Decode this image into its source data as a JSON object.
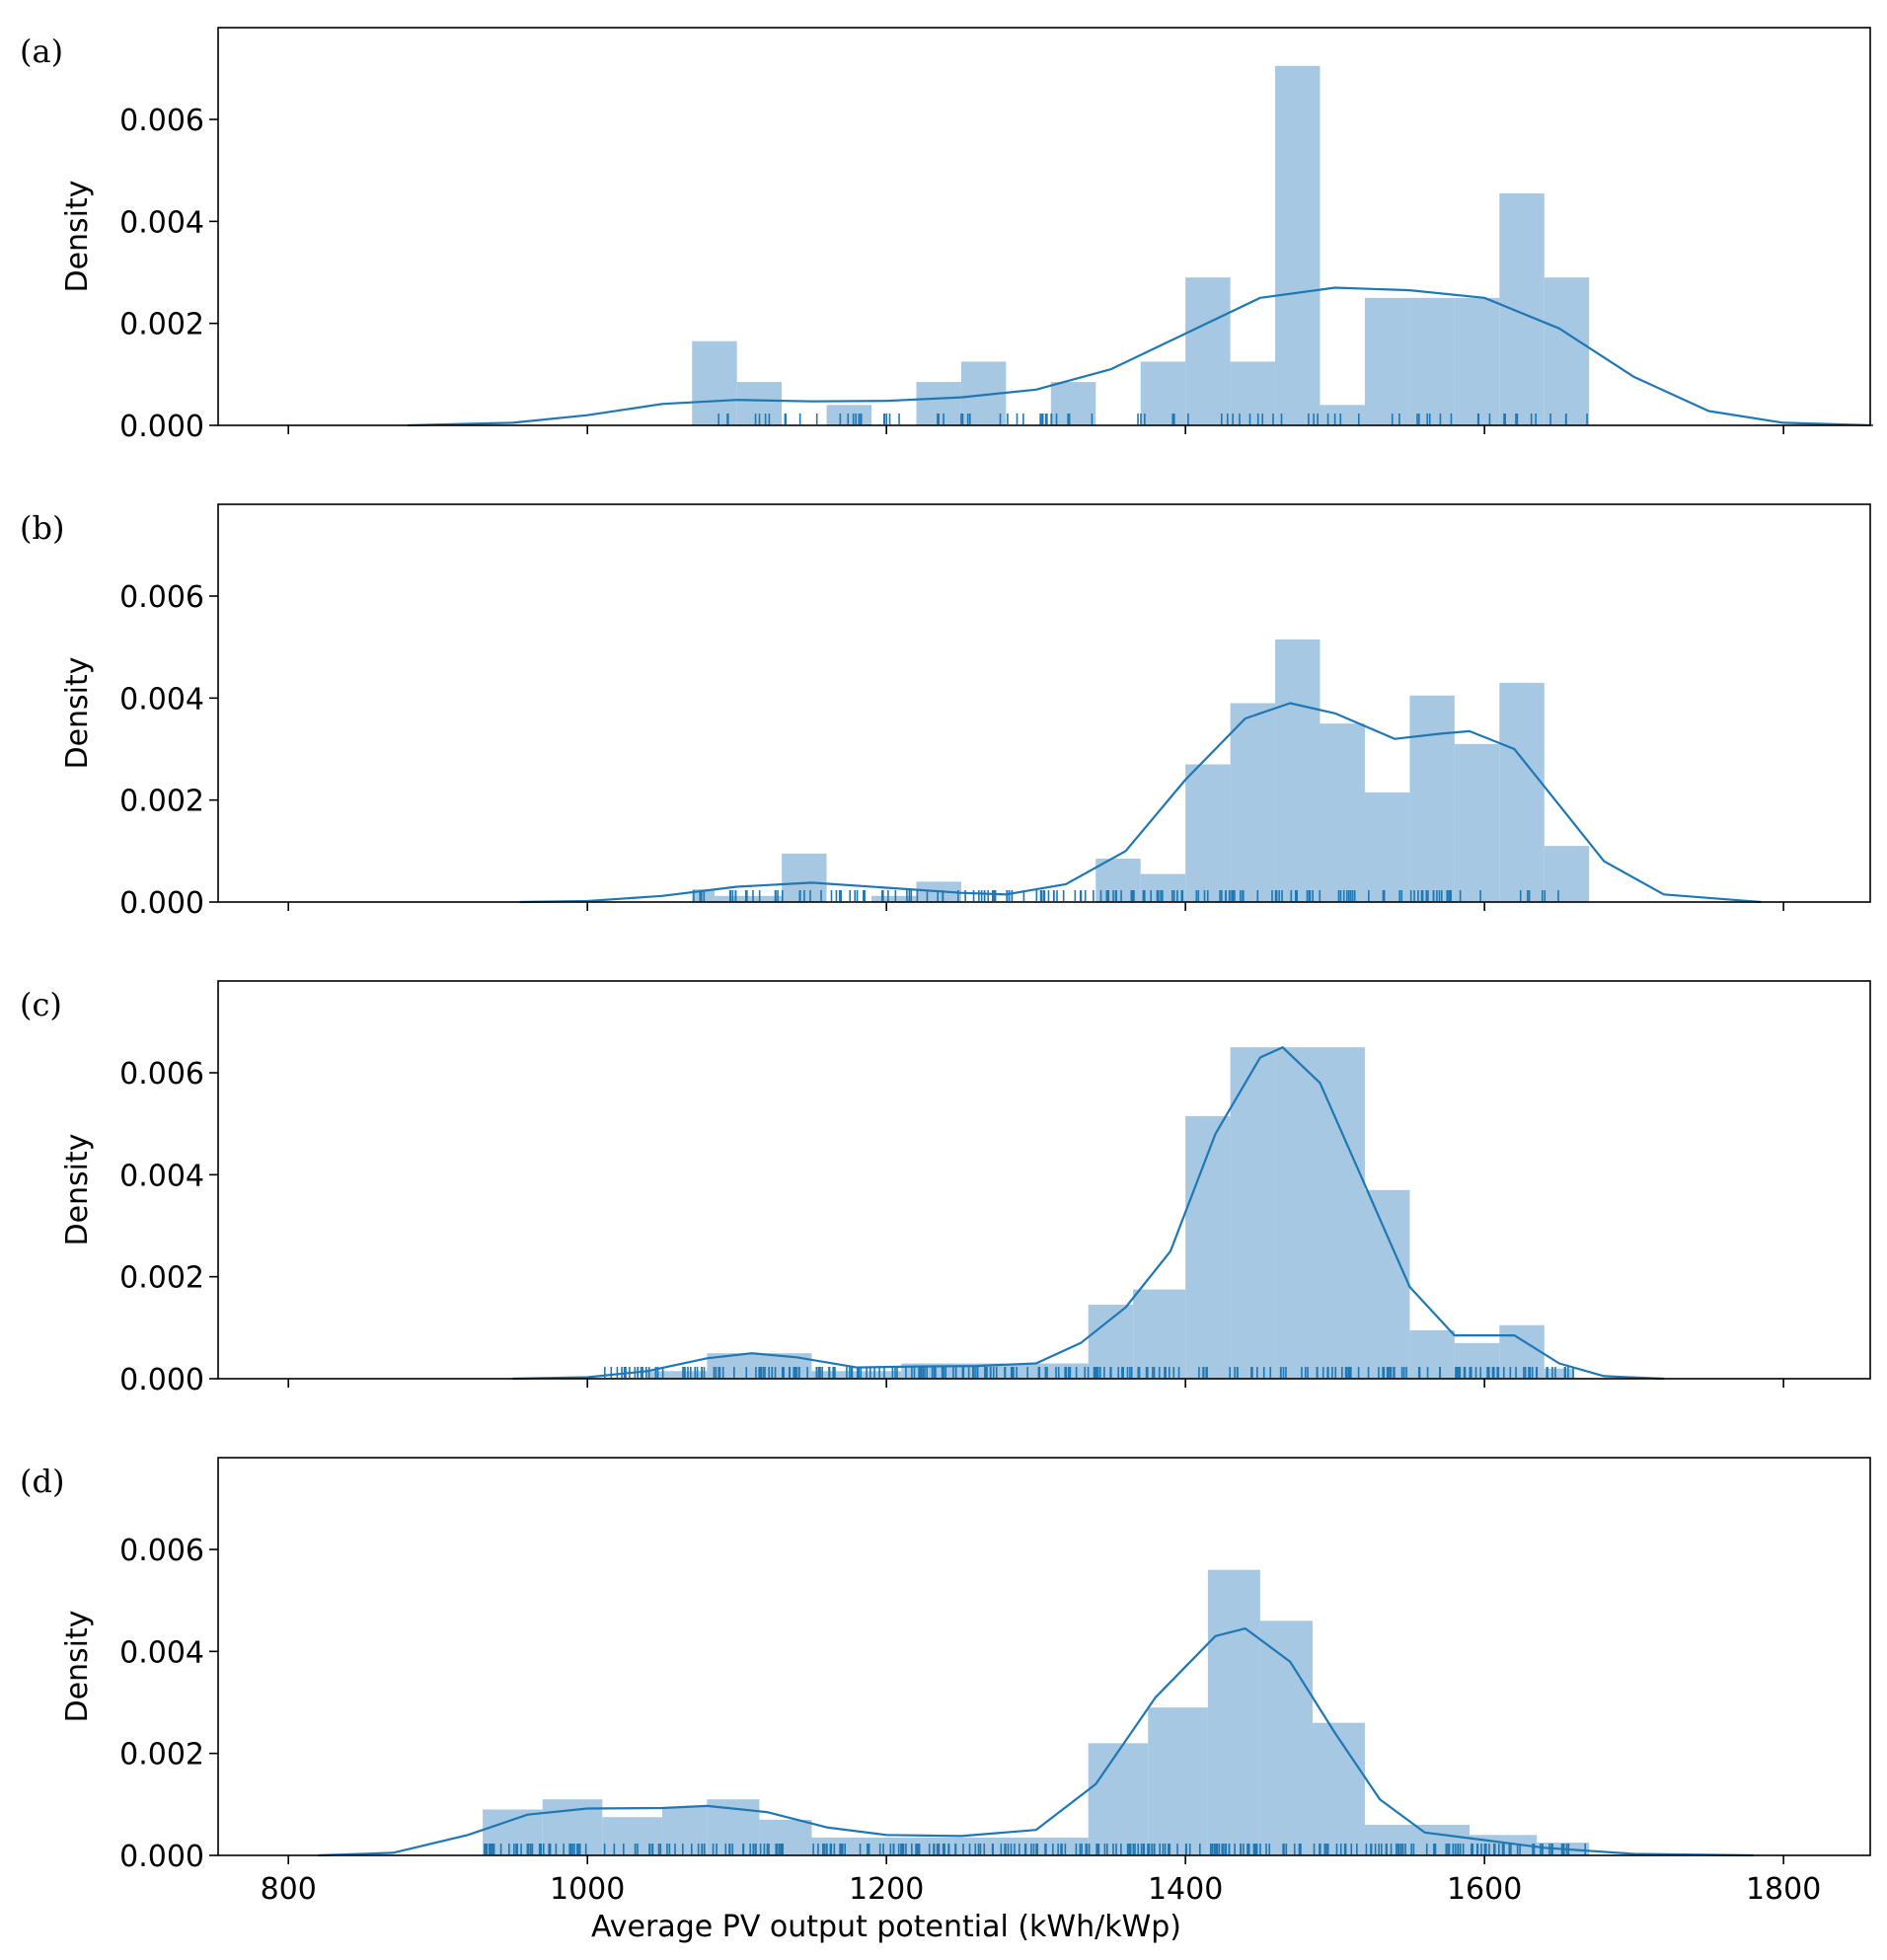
{
  "chart_data": {
    "type": "histogram",
    "xlabel": "Average PV output potential (kWh/kWp)",
    "ylabel": "Density",
    "xlim": [
      753,
      1858
    ],
    "ylim": [
      0,
      0.0078
    ],
    "x_ticks": [
      800,
      1000,
      1200,
      1400,
      1600,
      1800
    ],
    "y_ticks": [
      "0.000",
      "0.002",
      "0.004",
      "0.006"
    ],
    "colors": {
      "hist": "#a6c8e2",
      "kde": "#1f77b4",
      "axis": "#000000"
    },
    "panels": [
      {
        "label": "(a)",
        "bins": [
          {
            "x0": 1070,
            "x1": 1100,
            "y": 0.00165
          },
          {
            "x0": 1100,
            "x1": 1130,
            "y": 0.00085
          },
          {
            "x0": 1160,
            "x1": 1190,
            "y": 0.0004
          },
          {
            "x0": 1220,
            "x1": 1250,
            "y": 0.00085
          },
          {
            "x0": 1250,
            "x1": 1280,
            "y": 0.00125
          },
          {
            "x0": 1310,
            "x1": 1340,
            "y": 0.00085
          },
          {
            "x0": 1370,
            "x1": 1400,
            "y": 0.00125
          },
          {
            "x0": 1400,
            "x1": 1430,
            "y": 0.0029
          },
          {
            "x0": 1430,
            "x1": 1460,
            "y": 0.00125
          },
          {
            "x0": 1460,
            "x1": 1490,
            "y": 0.00705
          },
          {
            "x0": 1490,
            "x1": 1520,
            "y": 0.0004
          },
          {
            "x0": 1520,
            "x1": 1550,
            "y": 0.0025
          },
          {
            "x0": 1550,
            "x1": 1580,
            "y": 0.0025
          },
          {
            "x0": 1580,
            "x1": 1610,
            "y": 0.0025
          },
          {
            "x0": 1610,
            "x1": 1640,
            "y": 0.00455
          },
          {
            "x0": 1640,
            "x1": 1670,
            "y": 0.0029
          }
        ],
        "kde": [
          [
            880,
            0.0
          ],
          [
            950,
            5e-05
          ],
          [
            1000,
            0.0002
          ],
          [
            1050,
            0.00042
          ],
          [
            1100,
            0.0005
          ],
          [
            1150,
            0.00047
          ],
          [
            1200,
            0.00048
          ],
          [
            1250,
            0.00055
          ],
          [
            1300,
            0.0007
          ],
          [
            1350,
            0.0011
          ],
          [
            1400,
            0.0018
          ],
          [
            1450,
            0.0025
          ],
          [
            1500,
            0.0027
          ],
          [
            1550,
            0.00265
          ],
          [
            1600,
            0.0025
          ],
          [
            1650,
            0.0019
          ],
          [
            1700,
            0.00095
          ],
          [
            1750,
            0.00028
          ],
          [
            1800,
            5e-05
          ],
          [
            1860,
            0.0
          ]
        ],
        "rug_range": [
          1070,
          1670
        ],
        "rug_count": 90
      },
      {
        "label": "(b)",
        "bins": [
          {
            "x0": 1070,
            "x1": 1085,
            "y": 0.00025
          },
          {
            "x0": 1085,
            "x1": 1130,
            "y": 0.00012
          },
          {
            "x0": 1130,
            "x1": 1160,
            "y": 0.00095
          },
          {
            "x0": 1190,
            "x1": 1220,
            "y": 0.00012
          },
          {
            "x0": 1220,
            "x1": 1250,
            "y": 0.0004
          },
          {
            "x0": 1340,
            "x1": 1370,
            "y": 0.00085
          },
          {
            "x0": 1370,
            "x1": 1400,
            "y": 0.00055
          },
          {
            "x0": 1400,
            "x1": 1430,
            "y": 0.0027
          },
          {
            "x0": 1430,
            "x1": 1460,
            "y": 0.0039
          },
          {
            "x0": 1460,
            "x1": 1490,
            "y": 0.00515
          },
          {
            "x0": 1490,
            "x1": 1520,
            "y": 0.0035
          },
          {
            "x0": 1520,
            "x1": 1550,
            "y": 0.00215
          },
          {
            "x0": 1550,
            "x1": 1580,
            "y": 0.00405
          },
          {
            "x0": 1580,
            "x1": 1610,
            "y": 0.0031
          },
          {
            "x0": 1610,
            "x1": 1640,
            "y": 0.0043
          },
          {
            "x0": 1640,
            "x1": 1670,
            "y": 0.0011
          }
        ],
        "kde": [
          [
            955,
            0.0
          ],
          [
            1000,
            2e-05
          ],
          [
            1050,
            0.00012
          ],
          [
            1100,
            0.0003
          ],
          [
            1150,
            0.00038
          ],
          [
            1200,
            0.00028
          ],
          [
            1250,
            0.00018
          ],
          [
            1280,
            0.00015
          ],
          [
            1320,
            0.00035
          ],
          [
            1360,
            0.001
          ],
          [
            1400,
            0.0024
          ],
          [
            1440,
            0.0036
          ],
          [
            1470,
            0.0039
          ],
          [
            1500,
            0.0037
          ],
          [
            1540,
            0.0032
          ],
          [
            1570,
            0.0033
          ],
          [
            1590,
            0.00335
          ],
          [
            1620,
            0.003
          ],
          [
            1650,
            0.0019
          ],
          [
            1680,
            0.0008
          ],
          [
            1720,
            0.00015
          ],
          [
            1785,
            0.0
          ]
        ],
        "rug_range": [
          1070,
          1670
        ],
        "rug_count": 170
      },
      {
        "label": "(c)",
        "bins": [
          {
            "x0": 1040,
            "x1": 1080,
            "y": 0.00015
          },
          {
            "x0": 1080,
            "x1": 1150,
            "y": 0.0005
          },
          {
            "x0": 1150,
            "x1": 1210,
            "y": 0.00015
          },
          {
            "x0": 1210,
            "x1": 1335,
            "y": 0.0003
          },
          {
            "x0": 1335,
            "x1": 1365,
            "y": 0.00145
          },
          {
            "x0": 1365,
            "x1": 1400,
            "y": 0.00175
          },
          {
            "x0": 1400,
            "x1": 1430,
            "y": 0.00515
          },
          {
            "x0": 1430,
            "x1": 1460,
            "y": 0.0065
          },
          {
            "x0": 1460,
            "x1": 1490,
            "y": 0.0065
          },
          {
            "x0": 1490,
            "x1": 1520,
            "y": 0.0065
          },
          {
            "x0": 1520,
            "x1": 1550,
            "y": 0.0037
          },
          {
            "x0": 1550,
            "x1": 1580,
            "y": 0.00095
          },
          {
            "x0": 1580,
            "x1": 1610,
            "y": 0.0007
          },
          {
            "x0": 1610,
            "x1": 1640,
            "y": 0.00105
          },
          {
            "x0": 1640,
            "x1": 1660,
            "y": 0.0002
          }
        ],
        "kde": [
          [
            950,
            0.0
          ],
          [
            1000,
            3e-05
          ],
          [
            1040,
            0.00015
          ],
          [
            1080,
            0.0004
          ],
          [
            1110,
            0.0005
          ],
          [
            1140,
            0.00042
          ],
          [
            1180,
            0.00022
          ],
          [
            1220,
            0.00024
          ],
          [
            1260,
            0.00025
          ],
          [
            1300,
            0.0003
          ],
          [
            1330,
            0.0007
          ],
          [
            1360,
            0.0014
          ],
          [
            1390,
            0.0025
          ],
          [
            1420,
            0.0048
          ],
          [
            1450,
            0.0063
          ],
          [
            1465,
            0.0065
          ],
          [
            1490,
            0.0058
          ],
          [
            1520,
            0.0038
          ],
          [
            1550,
            0.0018
          ],
          [
            1580,
            0.00085
          ],
          [
            1600,
            0.00085
          ],
          [
            1620,
            0.00085
          ],
          [
            1650,
            0.0003
          ],
          [
            1680,
            5e-05
          ],
          [
            1720,
            0.0
          ]
        ],
        "rug_range": [
          1010,
          1660
        ],
        "rug_count": 260
      },
      {
        "label": "(d)",
        "bins": [
          {
            "x0": 930,
            "x1": 970,
            "y": 0.0009
          },
          {
            "x0": 970,
            "x1": 1010,
            "y": 0.0011
          },
          {
            "x0": 1010,
            "x1": 1050,
            "y": 0.00075
          },
          {
            "x0": 1050,
            "x1": 1080,
            "y": 0.00095
          },
          {
            "x0": 1080,
            "x1": 1115,
            "y": 0.0011
          },
          {
            "x0": 1115,
            "x1": 1150,
            "y": 0.0007
          },
          {
            "x0": 1150,
            "x1": 1335,
            "y": 0.00035
          },
          {
            "x0": 1335,
            "x1": 1375,
            "y": 0.0022
          },
          {
            "x0": 1375,
            "x1": 1415,
            "y": 0.0029
          },
          {
            "x0": 1415,
            "x1": 1450,
            "y": 0.0056
          },
          {
            "x0": 1450,
            "x1": 1485,
            "y": 0.0046
          },
          {
            "x0": 1485,
            "x1": 1520,
            "y": 0.0026
          },
          {
            "x0": 1520,
            "x1": 1590,
            "y": 0.0006
          },
          {
            "x0": 1590,
            "x1": 1635,
            "y": 0.0004
          },
          {
            "x0": 1635,
            "x1": 1670,
            "y": 0.00025
          }
        ],
        "kde": [
          [
            820,
            0.0
          ],
          [
            870,
            5e-05
          ],
          [
            920,
            0.0004
          ],
          [
            960,
            0.0008
          ],
          [
            1000,
            0.00092
          ],
          [
            1050,
            0.00093
          ],
          [
            1080,
            0.00097
          ],
          [
            1120,
            0.00085
          ],
          [
            1160,
            0.00055
          ],
          [
            1200,
            0.0004
          ],
          [
            1250,
            0.00038
          ],
          [
            1300,
            0.0005
          ],
          [
            1340,
            0.0014
          ],
          [
            1380,
            0.0031
          ],
          [
            1420,
            0.0043
          ],
          [
            1440,
            0.00445
          ],
          [
            1470,
            0.0038
          ],
          [
            1500,
            0.0024
          ],
          [
            1530,
            0.0011
          ],
          [
            1560,
            0.00045
          ],
          [
            1600,
            0.0003
          ],
          [
            1640,
            0.00015
          ],
          [
            1700,
            3e-05
          ],
          [
            1780,
            0.0
          ]
        ],
        "rug_range": [
          930,
          1670
        ],
        "rug_count": 320
      }
    ]
  }
}
